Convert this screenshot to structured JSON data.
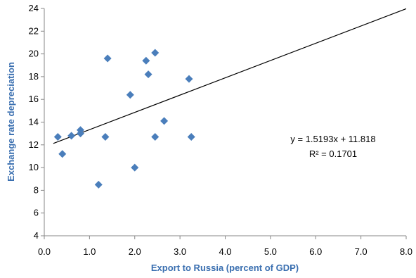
{
  "chart_data": {
    "type": "scatter",
    "xlabel": "Export to Russia (percent of GDP)",
    "ylabel": "Exchange rate depreciation",
    "xlim": [
      0,
      8
    ],
    "ylim": [
      4,
      24
    ],
    "x_ticks": [
      "0.0",
      "1.0",
      "2.0",
      "3.0",
      "4.0",
      "5.0",
      "6.0",
      "7.0",
      "8.0"
    ],
    "y_ticks": [
      "4",
      "6",
      "8",
      "10",
      "12",
      "14",
      "16",
      "18",
      "20",
      "22",
      "24"
    ],
    "grid": false,
    "series": [
      {
        "marker_color": "#4a7ebb",
        "points": [
          {
            "x": 0.3,
            "y": 12.7
          },
          {
            "x": 0.4,
            "y": 11.2
          },
          {
            "x": 0.6,
            "y": 12.8
          },
          {
            "x": 0.8,
            "y": 13.3
          },
          {
            "x": 0.8,
            "y": 13.0
          },
          {
            "x": 1.2,
            "y": 8.5
          },
          {
            "x": 1.35,
            "y": 12.7
          },
          {
            "x": 1.4,
            "y": 19.6
          },
          {
            "x": 1.9,
            "y": 16.4
          },
          {
            "x": 2.0,
            "y": 10.0
          },
          {
            "x": 2.25,
            "y": 19.4
          },
          {
            "x": 2.3,
            "y": 18.2
          },
          {
            "x": 2.45,
            "y": 20.1
          },
          {
            "x": 2.45,
            "y": 12.7
          },
          {
            "x": 2.65,
            "y": 14.1
          },
          {
            "x": 3.2,
            "y": 17.8
          },
          {
            "x": 3.25,
            "y": 12.7
          }
        ]
      }
    ],
    "trendline": {
      "slope": 1.5193,
      "intercept": 11.818,
      "x_start": 0.2,
      "x_end": 8.0,
      "color": "#000000"
    },
    "annotations": {
      "equation": "y = 1.5193x + 11.818",
      "r_squared": "R² = 0.1701"
    }
  }
}
